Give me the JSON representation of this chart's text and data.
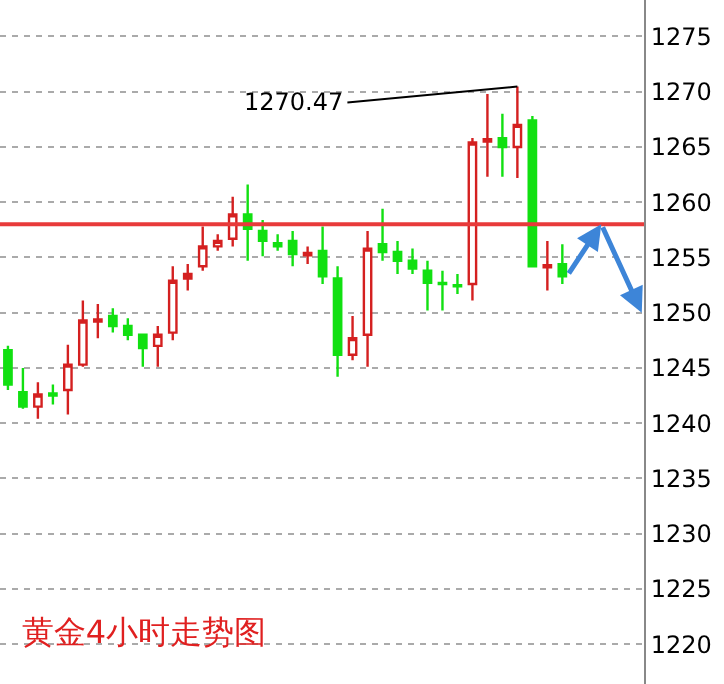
{
  "chart_data": {
    "type": "candlestick",
    "title": "黄金4小时走势图",
    "categories": [
      null,
      null,
      null,
      null,
      null,
      null,
      null,
      null,
      null,
      null,
      null,
      null,
      null,
      null,
      null,
      null,
      null,
      null,
      null,
      null,
      null,
      null,
      null,
      null,
      null,
      null,
      null,
      null,
      null,
      null,
      null,
      null,
      null,
      null,
      null,
      null,
      null,
      null
    ],
    "ohlc": [
      [
        1246.6,
        1247.0,
        1243.0,
        1243.5
      ],
      [
        1242.8,
        1245.0,
        1241.3,
        1241.5
      ],
      [
        1241.5,
        1243.7,
        1240.4,
        1242.6
      ],
      [
        1242.7,
        1243.5,
        1241.7,
        1242.5
      ],
      [
        1243.0,
        1247.1,
        1240.8,
        1245.3
      ],
      [
        1245.3,
        1251.1,
        1245.1,
        1249.3
      ],
      [
        1249.2,
        1250.8,
        1247.7,
        1249.4
      ],
      [
        1249.7,
        1250.4,
        1248.2,
        1248.8
      ],
      [
        1248.8,
        1249.5,
        1247.5,
        1248.0
      ],
      [
        1248.0,
        1248.0,
        1245.1,
        1246.8
      ],
      [
        1247.0,
        1248.8,
        1245.1,
        1248.0
      ],
      [
        1248.2,
        1254.2,
        1247.5,
        1252.9
      ],
      [
        1253.1,
        1254.4,
        1252.0,
        1253.5
      ],
      [
        1254.2,
        1257.8,
        1253.8,
        1256.0
      ],
      [
        1256.0,
        1257.1,
        1255.6,
        1256.5
      ],
      [
        1256.7,
        1260.5,
        1256.0,
        1258.9
      ],
      [
        1258.9,
        1261.6,
        1254.7,
        1257.6
      ],
      [
        1257.4,
        1258.4,
        1255.1,
        1256.5
      ],
      [
        1256.3,
        1257.1,
        1255.6,
        1256.0
      ],
      [
        1256.5,
        1257.4,
        1254.2,
        1255.3
      ],
      [
        1255.2,
        1256.0,
        1254.4,
        1255.4
      ],
      [
        1255.6,
        1257.8,
        1252.6,
        1253.3
      ],
      [
        1253.1,
        1254.2,
        1244.2,
        1246.2
      ],
      [
        1246.2,
        1249.7,
        1245.7,
        1247.7
      ],
      [
        1248.0,
        1257.4,
        1245.1,
        1255.8
      ],
      [
        1256.2,
        1259.4,
        1254.7,
        1255.5
      ],
      [
        1255.5,
        1256.5,
        1253.5,
        1254.7
      ],
      [
        1254.7,
        1255.8,
        1253.5,
        1254.0
      ],
      [
        1253.8,
        1254.7,
        1250.2,
        1252.7
      ],
      [
        1252.7,
        1253.8,
        1250.2,
        1252.6
      ],
      [
        1252.5,
        1253.5,
        1251.7,
        1252.4
      ],
      [
        1252.6,
        1265.8,
        1251.1,
        1265.4
      ],
      [
        1265.5,
        1269.8,
        1262.3,
        1265.7
      ],
      [
        1265.8,
        1268.0,
        1262.3,
        1265.0
      ],
      [
        1265.0,
        1270.47,
        1262.2,
        1267.0
      ],
      [
        1267.4,
        1267.8,
        1254.2,
        1254.2
      ],
      [
        1254.1,
        1256.5,
        1252.0,
        1254.3
      ],
      [
        1254.4,
        1256.2,
        1252.6,
        1253.3
      ]
    ],
    "ref_lines": [
      {
        "axis": "y",
        "value": 1258,
        "color": "#e83a3a"
      }
    ],
    "annotations": [
      "1270.47"
    ],
    "ylim": [
      1216.4,
      1278.3
    ],
    "yticks": [
      1220,
      1225,
      1230,
      1235,
      1240,
      1245,
      1250,
      1255,
      1260,
      1265,
      1270,
      1275
    ],
    "grid": "y",
    "tick_labels": "y"
  }
}
